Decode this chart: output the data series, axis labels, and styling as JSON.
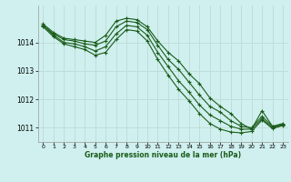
{
  "title": "Graphe pression niveau de la mer (hPa)",
  "background_color": "#cff0ee",
  "grid_color": "#c0ddd8",
  "line_color": "#1a5c1a",
  "xlim": [
    -0.5,
    23.5
  ],
  "ylim": [
    1010.5,
    1015.3
  ],
  "yticks": [
    1011,
    1012,
    1013,
    1014
  ],
  "xticks": [
    0,
    1,
    2,
    3,
    4,
    5,
    6,
    7,
    8,
    9,
    10,
    11,
    12,
    13,
    14,
    15,
    16,
    17,
    18,
    19,
    20,
    21,
    22,
    23
  ],
  "series": [
    [
      1014.65,
      1014.35,
      1014.15,
      1014.1,
      1014.05,
      1014.0,
      1014.25,
      1014.75,
      1014.85,
      1014.8,
      1014.55,
      1014.05,
      1013.65,
      1013.35,
      1012.9,
      1012.55,
      1012.05,
      1011.75,
      1011.5,
      1011.15,
      1010.95,
      1011.6,
      1011.05,
      1011.15
    ],
    [
      1014.6,
      1014.3,
      1014.1,
      1014.05,
      1013.95,
      1013.9,
      1014.05,
      1014.55,
      1014.75,
      1014.7,
      1014.45,
      1013.9,
      1013.4,
      1013.05,
      1012.6,
      1012.15,
      1011.75,
      1011.55,
      1011.25,
      1011.05,
      1011.0,
      1011.4,
      1011.05,
      1011.1
    ],
    [
      1014.6,
      1014.25,
      1014.0,
      1013.95,
      1013.85,
      1013.7,
      1013.85,
      1014.3,
      1014.6,
      1014.55,
      1014.25,
      1013.65,
      1013.15,
      1012.65,
      1012.25,
      1011.8,
      1011.45,
      1011.25,
      1011.05,
      1010.95,
      1010.95,
      1011.32,
      1011.0,
      1011.1
    ],
    [
      1014.55,
      1014.2,
      1013.95,
      1013.85,
      1013.75,
      1013.55,
      1013.65,
      1014.1,
      1014.45,
      1014.4,
      1014.05,
      1013.4,
      1012.85,
      1012.35,
      1011.95,
      1011.5,
      1011.15,
      1010.95,
      1010.85,
      1010.82,
      1010.87,
      1011.27,
      1010.97,
      1011.08
    ]
  ]
}
